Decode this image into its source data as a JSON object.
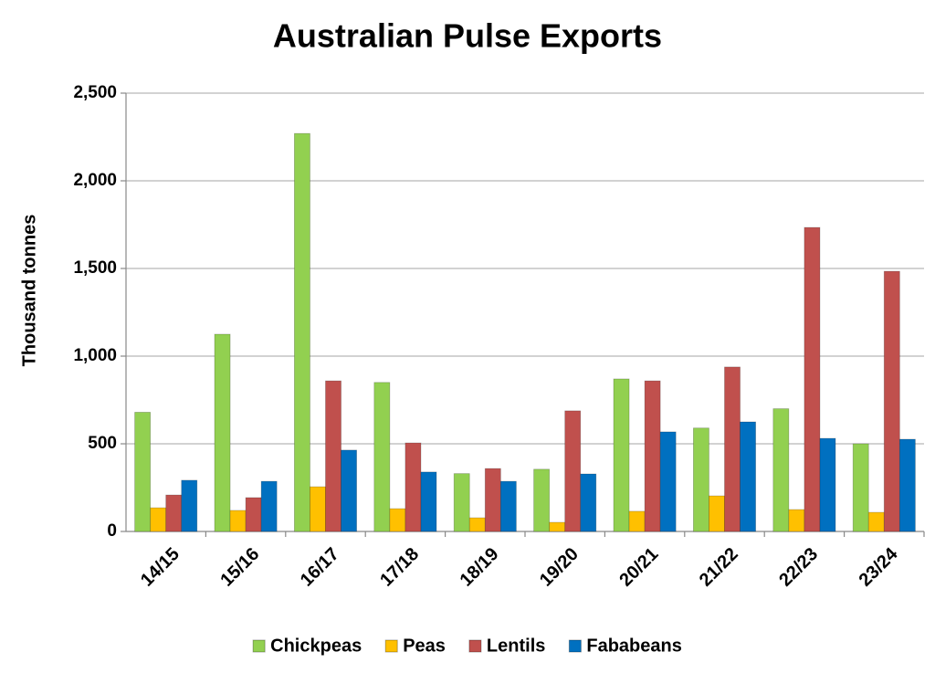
{
  "chart_data": {
    "type": "bar",
    "title": "Australian Pulse Exports",
    "y_label": "Thousand tonnes",
    "categories": [
      "14/15",
      "15/16",
      "16/17",
      "17/18",
      "18/19",
      "19/20",
      "20/21",
      "21/22",
      "22/23",
      "23/24"
    ],
    "series": [
      {
        "name": "Chickpeas",
        "color": "#92d050",
        "values": [
          680,
          1125,
          2270,
          850,
          330,
          355,
          870,
          590,
          700,
          500
        ]
      },
      {
        "name": "Peas",
        "color": "#ffc000",
        "values": [
          135,
          120,
          255,
          130,
          78,
          52,
          115,
          203,
          125,
          109
        ]
      },
      {
        "name": "Lentils",
        "color": "#c0504d",
        "values": [
          208,
          193,
          859,
          505,
          359,
          688,
          859,
          938,
          1734,
          1484
        ]
      },
      {
        "name": "Fababeans",
        "color": "#0070c0",
        "values": [
          292,
          286,
          464,
          339,
          286,
          328,
          568,
          625,
          531,
          526
        ]
      }
    ],
    "ylim": [
      0,
      2500
    ],
    "yticks": [
      0,
      500,
      {
        "value": 1000,
        "label": "1,000"
      },
      {
        "value": 1500,
        "label": "1,500"
      },
      {
        "value": 2000,
        "label": "2,000"
      },
      {
        "value": 2500,
        "label": "2,500"
      }
    ],
    "grid": true,
    "legend": "bottom"
  }
}
